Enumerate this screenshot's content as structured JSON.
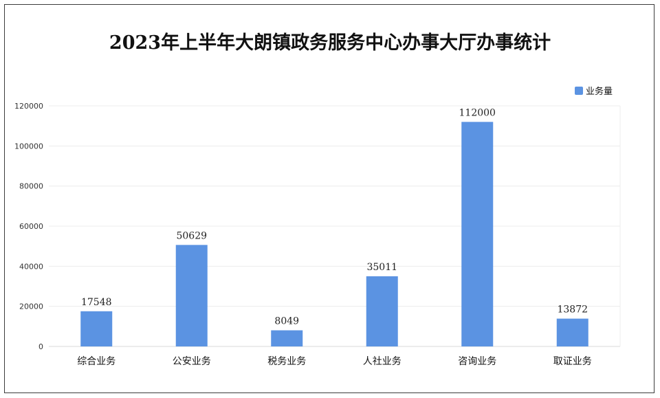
{
  "chart_data": {
    "type": "bar",
    "title": "2023年上半年大朗镇政务服务中心办事大厅办事统计",
    "categories": [
      "综合业务",
      "公安业务",
      "税务业务",
      "人社业务",
      "咨询业务",
      "取证业务"
    ],
    "series": [
      {
        "name": "业务量",
        "values": [
          17548,
          50629,
          8049,
          35011,
          112000,
          13872
        ],
        "color": "#5b93e2"
      }
    ],
    "ylim": [
      0,
      120000
    ],
    "yticks": [
      0,
      20000,
      40000,
      60000,
      80000,
      100000,
      120000
    ],
    "grid": true,
    "legend": "top-right",
    "data_labels": true
  }
}
